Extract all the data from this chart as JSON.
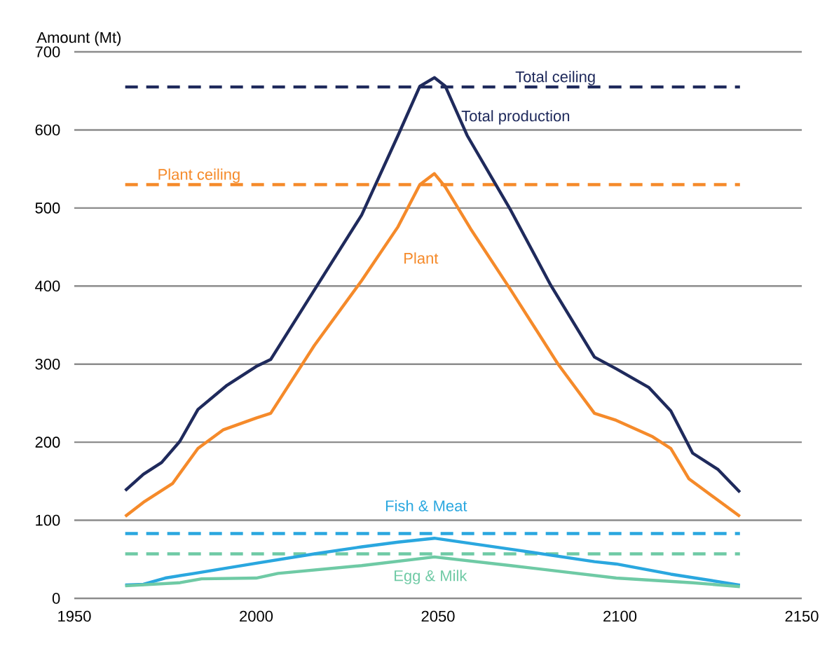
{
  "chart_data": {
    "type": "line",
    "ylabel": "Amount (Mt)",
    "xlim": [
      1950,
      2150
    ],
    "xticks": [
      1950,
      2000,
      2050,
      2100,
      2150
    ],
    "ylim": [
      0,
      700
    ],
    "yticks": [
      0,
      100,
      200,
      300,
      400,
      500,
      600,
      700
    ],
    "grid": "y",
    "marker": "none",
    "line_style": "solid",
    "series": [
      {
        "name": "Total production",
        "color": "#1f2a5c",
        "x": [
          1964,
          1969,
          1974,
          1979,
          1984,
          1992,
          2000,
          2004,
          2016,
          2029,
          2039,
          2045,
          2049,
          2052,
          2058,
          2070,
          2081,
          2093,
          2099,
          2108,
          2114,
          2120,
          2127,
          2133
        ],
        "values": [
          138,
          159,
          174,
          201,
          242,
          273,
          297,
          306,
          395,
          491,
          593,
          656,
          667,
          656,
          593,
          497,
          401,
          309,
          294,
          270,
          240,
          186,
          165,
          136
        ]
      },
      {
        "name": "Plant",
        "color": "#f58a2a",
        "x": [
          1964,
          1969,
          1977,
          1984,
          1991,
          2000,
          2004,
          2016,
          2029,
          2039,
          2045,
          2049,
          2052,
          2059,
          2070,
          2083,
          2093,
          2099,
          2109,
          2114,
          2119,
          2126,
          2133
        ],
        "values": [
          105,
          123,
          147,
          192,
          216,
          231,
          237,
          324,
          407,
          476,
          530,
          544,
          527,
          473,
          395,
          300,
          237,
          228,
          207,
          192,
          153,
          129,
          105
        ]
      },
      {
        "name": "Fish & Meat",
        "color": "#2aa7df",
        "x": [
          1964,
          1969,
          1975,
          1983,
          2000,
          2016,
          2029,
          2039,
          2049,
          2070,
          2093,
          2099,
          2114,
          2133
        ],
        "values": [
          17,
          18,
          26,
          32,
          45,
          57,
          66,
          72,
          77,
          63,
          47,
          44,
          31,
          17
        ]
      },
      {
        "name": "Egg & Milk",
        "color": "#6fcaa5",
        "x": [
          1964,
          1979,
          1985,
          2000,
          2006,
          2029,
          2049,
          2070,
          2099,
          2120,
          2133
        ],
        "values": [
          16,
          20,
          25,
          26,
          32,
          42,
          53,
          42,
          26,
          20,
          15
        ]
      }
    ],
    "ref_lines": [
      {
        "axis": "y",
        "value": 655,
        "label": "Total ceiling",
        "color": "#1f2a5c",
        "line_style": "dashed"
      },
      {
        "axis": "y",
        "value": 530,
        "label": "Plant ceiling",
        "color": "#f58a2a",
        "line_style": "dashed"
      },
      {
        "axis": "y",
        "value": 83,
        "label": null,
        "color": "#2aa7df",
        "line_style": "dashed"
      },
      {
        "axis": "y",
        "value": 57,
        "label": null,
        "color": "#6fcaa5",
        "line_style": "dashed"
      }
    ]
  }
}
